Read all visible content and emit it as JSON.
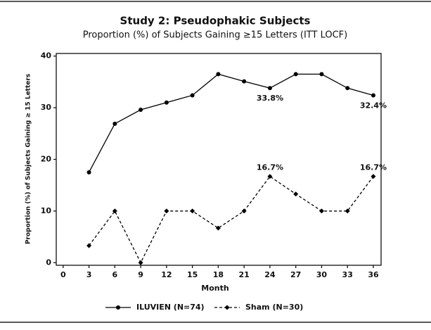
{
  "chart_data": {
    "type": "line",
    "title": "Study 2: Pseudophakic Subjects",
    "subtitle": "Proportion (%) of Subjects Gaining ≥15 Letters (ITT LOCF)",
    "xlabel": "Month",
    "ylabel": "Proportion (%) of Subjects Gaining ≥ 15 Letters",
    "x": [
      3,
      6,
      9,
      12,
      15,
      18,
      21,
      24,
      27,
      30,
      33,
      36
    ],
    "series": [
      {
        "name": "ILUVIEN (N=74)",
        "color": "#000000",
        "dash": "solid",
        "marker": "circle",
        "values": [
          17.5,
          26.9,
          29.6,
          31.0,
          32.4,
          36.5,
          35.1,
          33.8,
          36.5,
          36.5,
          33.8,
          32.4
        ],
        "value_labels": [
          null,
          null,
          null,
          null,
          null,
          null,
          null,
          "33.8%",
          null,
          null,
          null,
          "32.4%"
        ]
      },
      {
        "name": "Sham (N=30)",
        "color": "#000000",
        "dash": "dashed",
        "marker": "diamond",
        "values": [
          3.3,
          10,
          0,
          10,
          10,
          6.7,
          10,
          16.7,
          13.3,
          10,
          10,
          16.7
        ],
        "value_labels": [
          null,
          null,
          null,
          null,
          null,
          null,
          null,
          "16.7%",
          null,
          null,
          null,
          "16.7%"
        ]
      }
    ],
    "xlim": [
      -0.8,
      36.9
    ],
    "xticks": [
      0,
      3,
      6,
      9,
      12,
      15,
      18,
      21,
      24,
      27,
      30,
      33,
      36
    ],
    "ylim": [
      -0.5,
      40.5
    ],
    "yticks": [
      0,
      10,
      20,
      30,
      40
    ],
    "grid": false,
    "legend": "bottom"
  }
}
